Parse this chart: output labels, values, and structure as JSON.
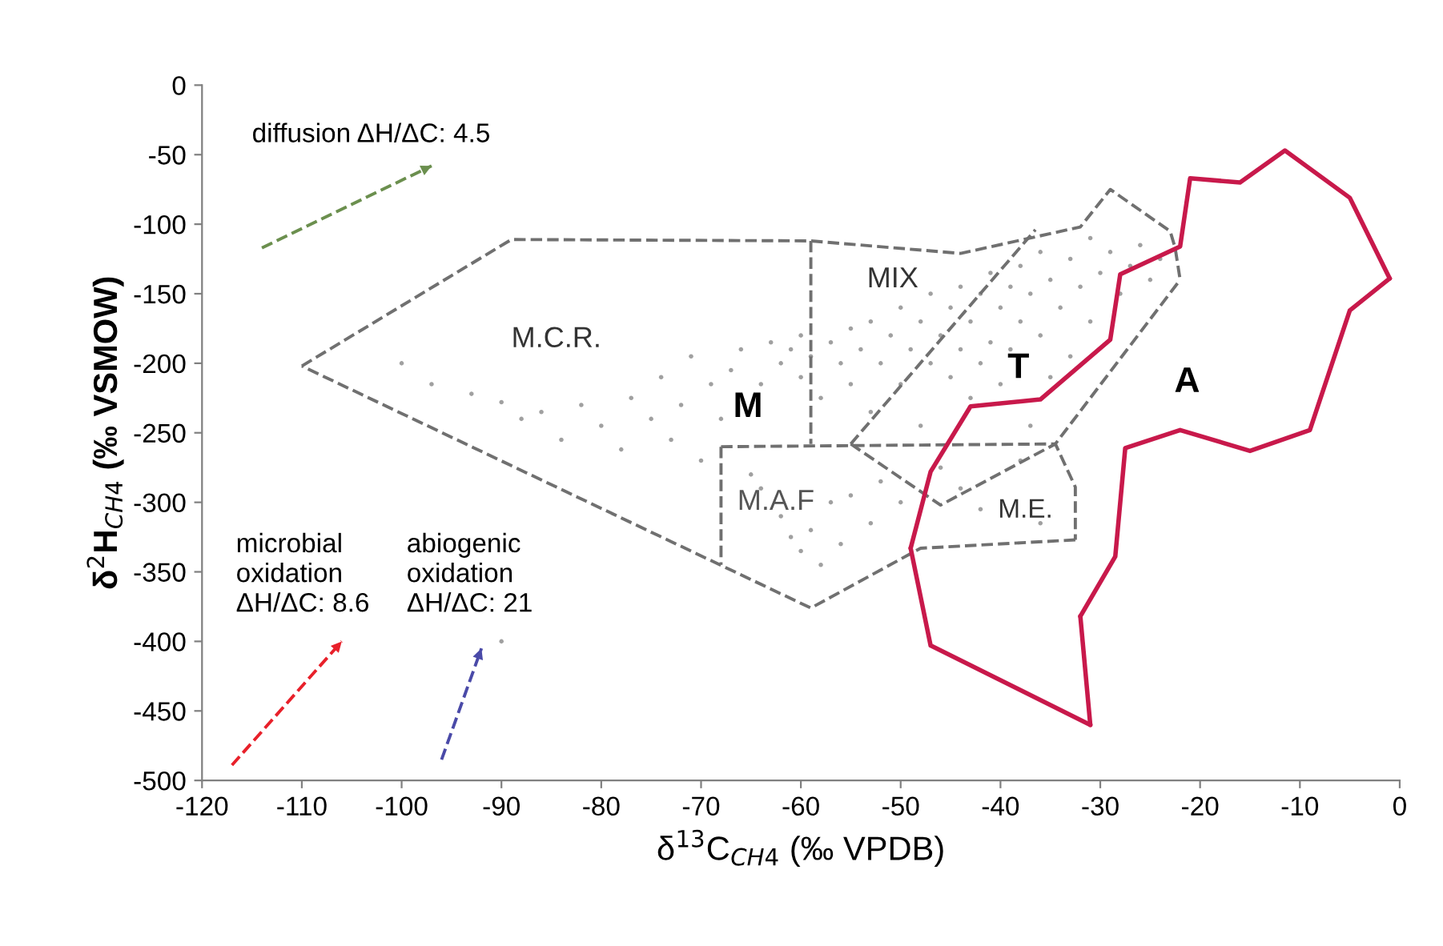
{
  "chart_data": {
    "type": "scatter",
    "xlabel": "δ$^{13}$C$_{CH4}$ (‰ VPDB)",
    "ylabel": "δ$^{2}$H$_{CH4}$ (‰ VSMOW)",
    "xlim": [
      -120,
      0
    ],
    "ylim": [
      -500,
      0
    ],
    "xticks": [
      -120,
      -110,
      -100,
      -90,
      -80,
      -70,
      -60,
      -50,
      -40,
      -30,
      -20,
      -10,
      0
    ],
    "yticks": [
      -500,
      -450,
      -400,
      -350,
      -300,
      -250,
      -200,
      -150,
      -100,
      -50,
      0
    ],
    "grid": false,
    "legend": false,
    "series": [
      {
        "color": "#a0a0a0",
        "marker": "circle",
        "x": [
          -100,
          -97,
          -93,
          -90,
          -88,
          -86,
          -84,
          -82,
          -80,
          -78,
          -77,
          -75,
          -74,
          -73,
          -72,
          -71,
          -70,
          -69,
          -68,
          -67,
          -66,
          -65,
          -64,
          -63,
          -62,
          -61,
          -60,
          -60,
          -59,
          -58,
          -57,
          -56,
          -55,
          -55,
          -54,
          -53,
          -53,
          -52,
          -51,
          -50,
          -50,
          -49,
          -48,
          -48,
          -47,
          -47,
          -46,
          -45,
          -45,
          -44,
          -44,
          -43,
          -43,
          -42,
          -42,
          -41,
          -41,
          -40,
          -40,
          -39,
          -39,
          -38,
          -38,
          -37,
          -37,
          -36,
          -36,
          -35,
          -35,
          -34,
          -33,
          -33,
          -32,
          -31,
          -31,
          -30,
          -29,
          -28,
          -27,
          -26,
          -25,
          -24,
          -64,
          -62,
          -61,
          -60,
          -59,
          -58,
          -57,
          -56,
          -55,
          -53,
          -52,
          -50,
          -46,
          -44,
          -42,
          -38,
          -36,
          -90
        ],
        "values": [
          -200,
          -215,
          -222,
          -228,
          -240,
          -235,
          -255,
          -230,
          -245,
          -262,
          -225,
          -240,
          -210,
          -255,
          -230,
          -195,
          -270,
          -215,
          -240,
          -205,
          -190,
          -280,
          -215,
          -185,
          -200,
          -190,
          -210,
          -180,
          -195,
          -225,
          -185,
          -200,
          -175,
          -215,
          -190,
          -170,
          -235,
          -200,
          -180,
          -160,
          -215,
          -190,
          -170,
          -245,
          -150,
          -200,
          -180,
          -160,
          -210,
          -145,
          -190,
          -170,
          -225,
          -150,
          -200,
          -135,
          -185,
          -160,
          -215,
          -145,
          -190,
          -130,
          -170,
          -150,
          -245,
          -120,
          -180,
          -140,
          -210,
          -160,
          -125,
          -195,
          -145,
          -110,
          -170,
          -135,
          -120,
          -150,
          -130,
          -115,
          -140,
          -125,
          -290,
          -310,
          -325,
          -335,
          -320,
          -345,
          -300,
          -330,
          -295,
          -315,
          -285,
          -300,
          -275,
          -290,
          -305,
          -270,
          -315,
          -400
        ]
      },
      {
        "type": "line",
        "color": "#707070",
        "line_style": "dashed",
        "marker": "none",
        "x": [
          -110,
          -89,
          -59,
          -44,
          -32,
          -29,
          -23,
          -22.5,
          -22
        ],
        "values": [
          -202,
          -111,
          -112,
          -121,
          -102,
          -75,
          -105,
          -117,
          -140
        ]
      },
      {
        "type": "line",
        "color": "#707070",
        "line_style": "dashed",
        "marker": "none",
        "x": [
          -32.5,
          -48,
          -59,
          -110
        ],
        "values": [
          -327,
          -333,
          -376,
          -202
        ]
      },
      {
        "type": "line",
        "color": "#707070",
        "line_style": "dashed",
        "marker": "none",
        "x": [
          -59,
          -59
        ],
        "values": [
          -112,
          -258
        ]
      },
      {
        "type": "line",
        "color": "#707070",
        "line_style": "dashed",
        "marker": "none",
        "x": [
          -68,
          -34.5,
          -32.5,
          -32.5
        ],
        "values": [
          -260,
          -258,
          -289,
          -327
        ]
      },
      {
        "type": "line",
        "color": "#707070",
        "line_style": "dashed",
        "marker": "none",
        "x": [
          -68,
          -68
        ],
        "values": [
          -260,
          -345
        ]
      },
      {
        "type": "line",
        "color": "#707070",
        "line_style": "dashed",
        "marker": "none",
        "x": [
          -55,
          -36.5
        ],
        "values": [
          -258,
          -104
        ]
      },
      {
        "type": "line",
        "color": "#707070",
        "line_style": "dashed",
        "marker": "none",
        "x": [
          -55,
          -46,
          -34.5,
          -22
        ],
        "values": [
          -258,
          -302,
          -258,
          -140
        ]
      },
      {
        "type": "line",
        "color": "#c8194b",
        "line_style": "solid",
        "marker": "none",
        "x": [
          -49,
          -47,
          -43,
          -36,
          -29,
          -28,
          -22,
          -21,
          -16,
          -11.5,
          -5,
          -1
        ],
        "values": [
          -333,
          -278,
          -231,
          -226,
          -183,
          -136,
          -116,
          -67,
          -70,
          -47,
          -81,
          -139
        ]
      },
      {
        "type": "line",
        "color": "#c8194b",
        "line_style": "solid",
        "marker": "none",
        "x": [
          -1,
          -5,
          -9,
          -15,
          -22,
          -27.5,
          -28.5,
          -32
        ],
        "values": [
          -139,
          -162,
          -248,
          -263,
          -248,
          -261,
          -339,
          -382
        ]
      },
      {
        "type": "line",
        "color": "#c8194b",
        "line_style": "solid",
        "marker": "none",
        "x": [
          -32,
          -31
        ],
        "values": [
          -382,
          -460
        ]
      },
      {
        "type": "line",
        "color": "#c8194b",
        "line_style": "solid",
        "marker": "none",
        "x": [
          -31,
          -47,
          -49
        ],
        "values": [
          -460,
          -403,
          -333
        ]
      },
      {
        "type": "line",
        "color": "#6b8f4e",
        "line_style": "dashed",
        "marker": "none",
        "x": [
          -114,
          -97
        ],
        "values": [
          -117,
          -58
        ]
      },
      {
        "type": "line",
        "color": "#e8202a",
        "line_style": "dashed",
        "marker": "none",
        "x": [
          -117,
          -106
        ],
        "values": [
          -489,
          -400
        ]
      },
      {
        "type": "line",
        "color": "#4a4aa8",
        "line_style": "dashed",
        "marker": "none",
        "x": [
          -96,
          -92
        ],
        "values": [
          -485,
          -405
        ]
      }
    ],
    "annotations": [
      "diffusion ΔH/ΔC: 4.5",
      "microbial\noxidation\nΔH/ΔC: 8.6",
      "abiogenic\noxidation\nΔH/ΔC: 21",
      "M.C.R.",
      "M",
      "MIX",
      "T",
      "A",
      "M.A.F",
      "M.E."
    ]
  }
}
